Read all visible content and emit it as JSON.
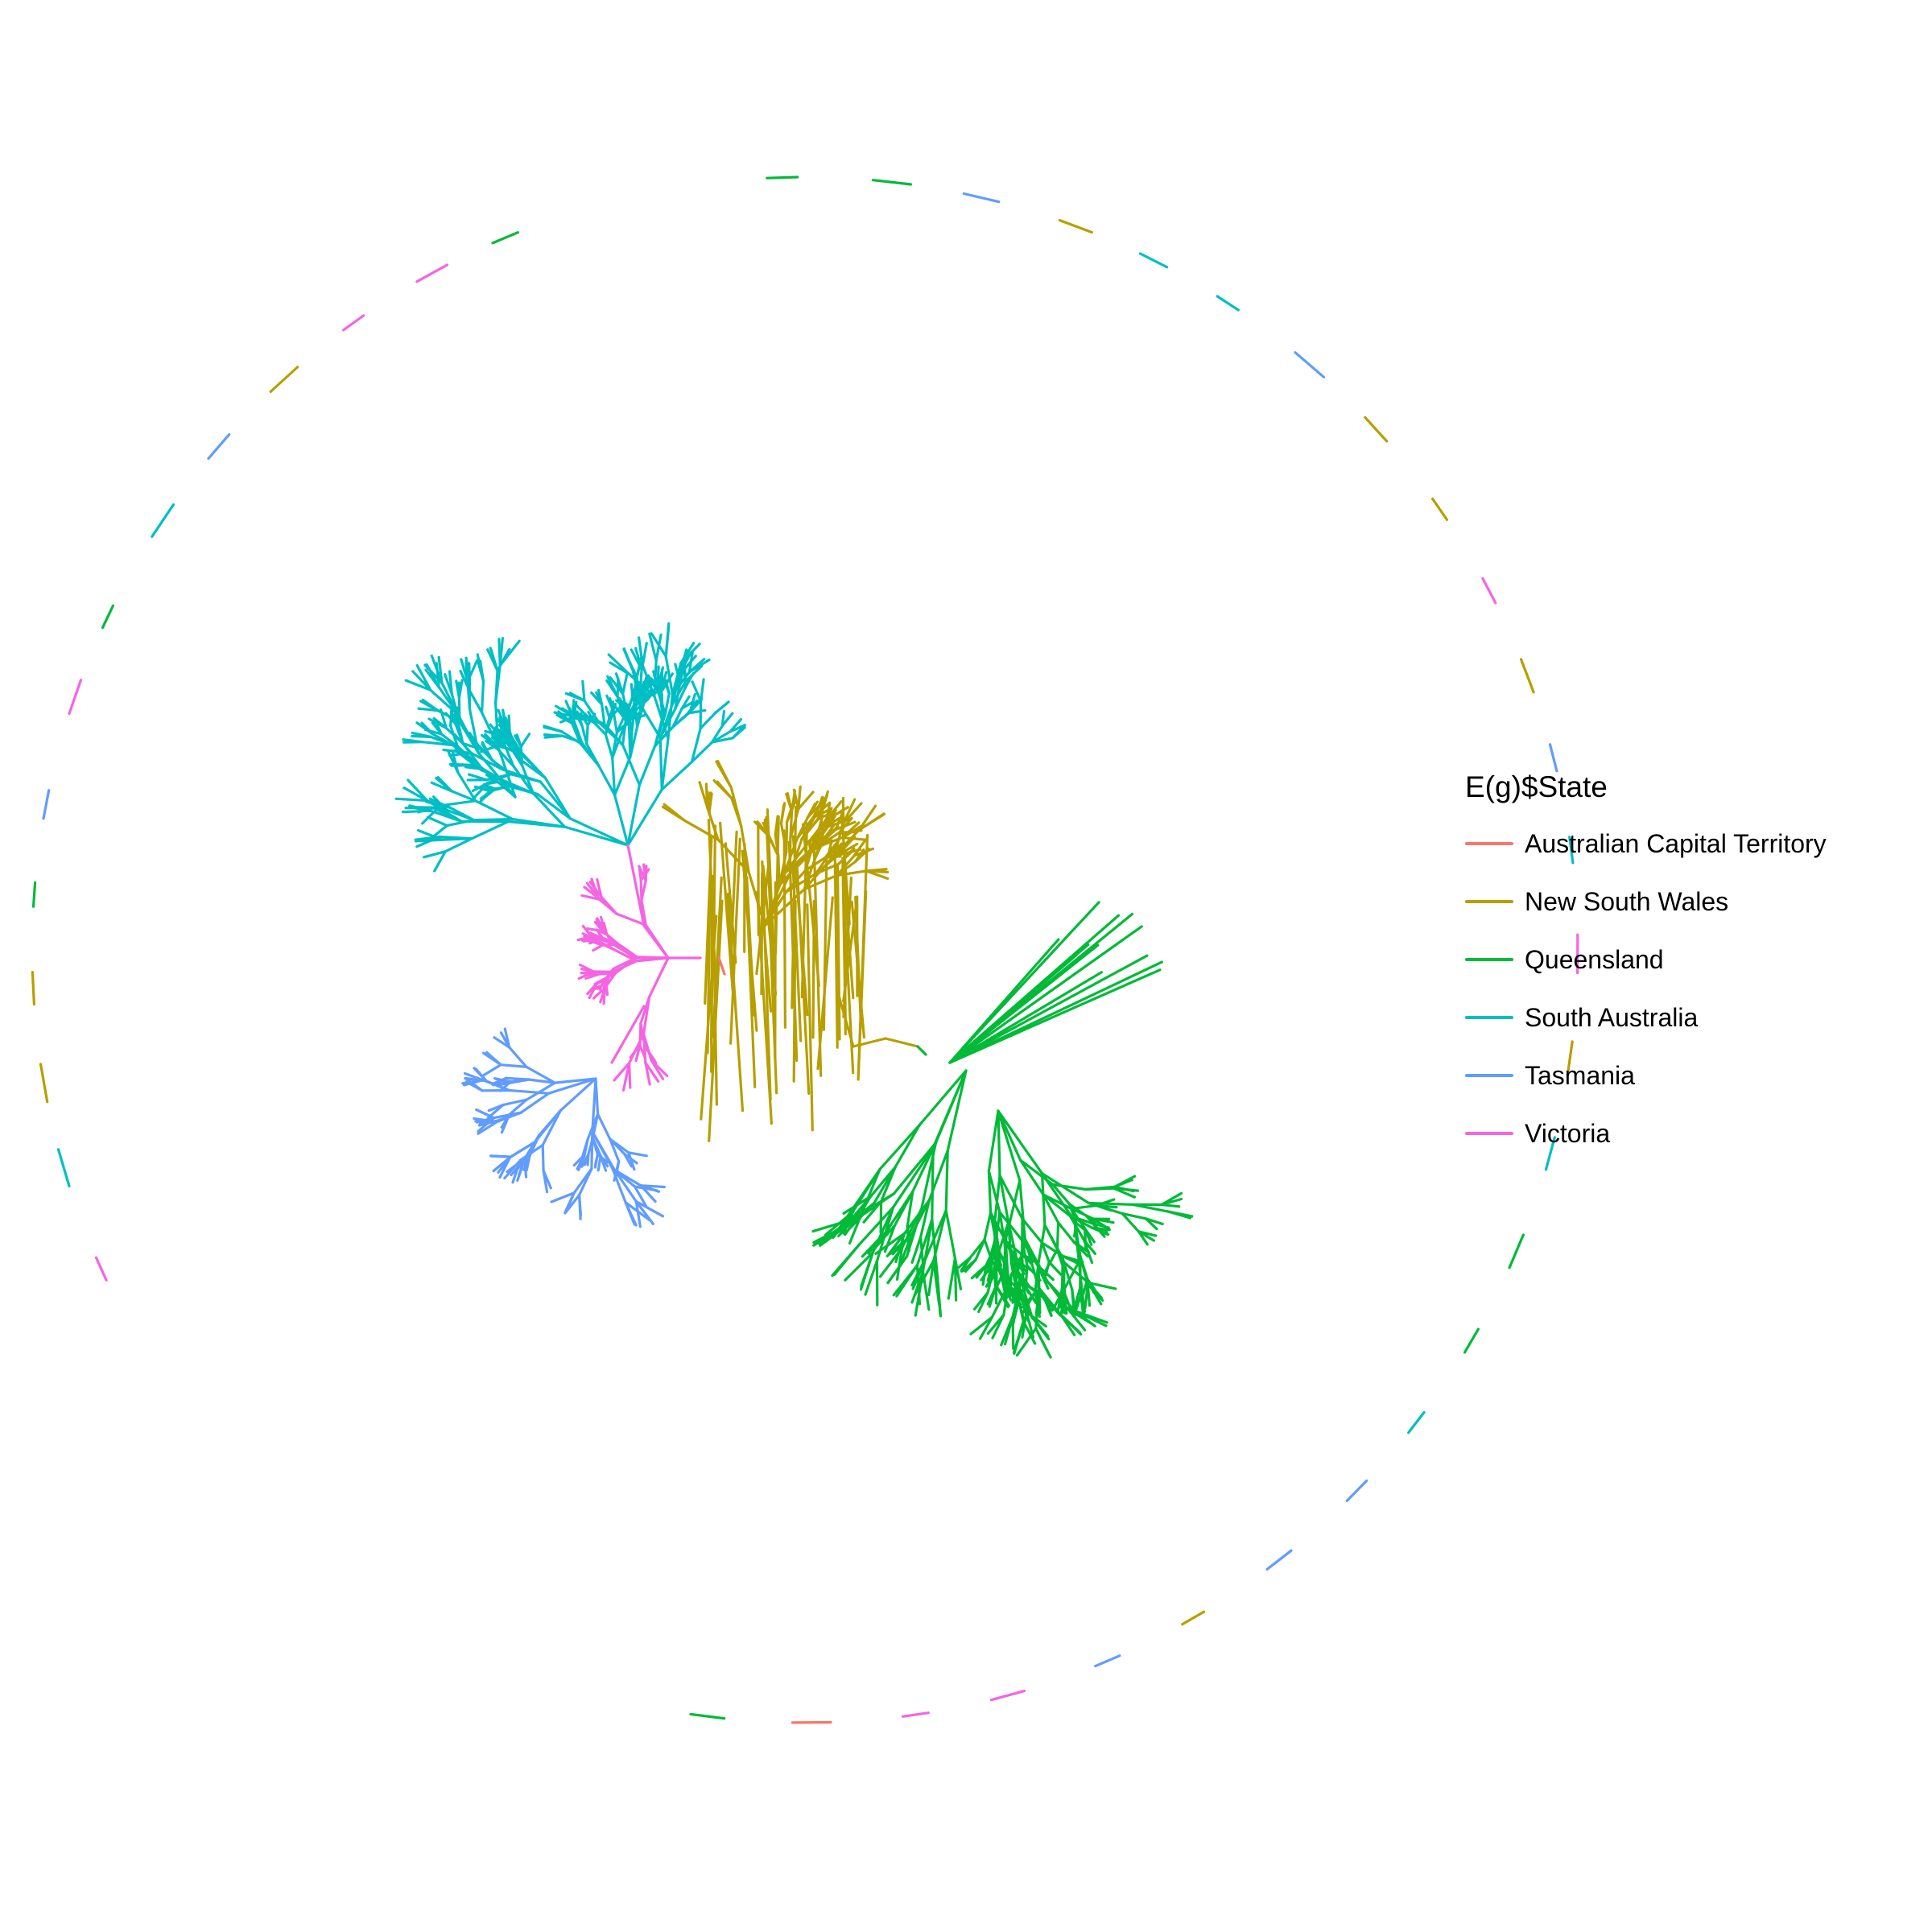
{
  "legend": {
    "title": "E(g)$State",
    "items": [
      {
        "label": "Australian Capital Territory",
        "color": "#F8766D"
      },
      {
        "label": "New South Wales",
        "color": "#B79F00"
      },
      {
        "label": "Queensland",
        "color": "#00BA38"
      },
      {
        "label": "South Australia",
        "color": "#00BFC4"
      },
      {
        "label": "Tasmania",
        "color": "#619CFF"
      },
      {
        "label": "Victoria",
        "color": "#F564E3"
      }
    ]
  },
  "graph": {
    "layout": "force-directed network of edges colored by state, with isolated components placed on an outer ring",
    "edge_color_attribute": "State",
    "clusters": [
      {
        "state": "South Australia",
        "icon": "tree-branches"
      },
      {
        "state": "Victoria",
        "icon": "tree-branches"
      },
      {
        "state": "Tasmania",
        "icon": "tree-branches"
      },
      {
        "state": "New South Wales",
        "icon": "tree-branches"
      },
      {
        "state": "Queensland",
        "icon": "tree-branches"
      },
      {
        "state": "Australian Capital Territory",
        "icon": "tree-branches"
      }
    ]
  }
}
